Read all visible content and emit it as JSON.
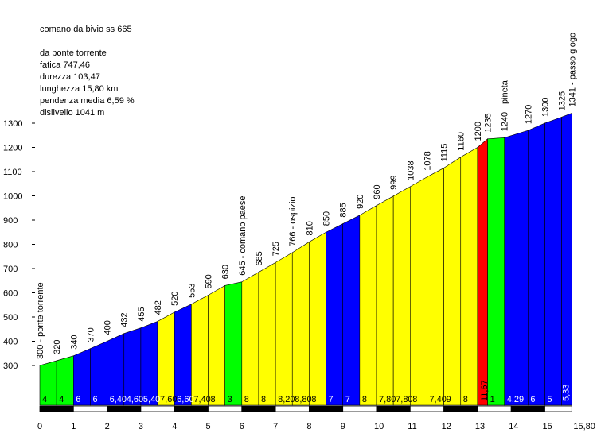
{
  "header": {
    "title": "comano da  bivio ss 665",
    "stats": [
      "da ponte torrente",
      "fatica 747,46",
      "durezza 103,47",
      "lunghezza 15,80 km",
      "pendenza media 6,59 %",
      "dislivello 1041 m"
    ]
  },
  "chart_data": {
    "type": "area",
    "title": "comano da  bivio ss 665",
    "xlabel": "",
    "ylabel": "",
    "x_unit": "km",
    "y_unit": "m",
    "xlim": [
      0,
      15.8
    ],
    "ylim": [
      300,
      1341
    ],
    "x_ticks": [
      "0",
      "1",
      "2",
      "3",
      "4",
      "5",
      "6",
      "7",
      "8",
      "9",
      "10",
      "11",
      "12",
      "13",
      "14",
      "15",
      "15,80"
    ],
    "y_ticks": [
      300,
      400,
      500,
      600,
      700,
      800,
      900,
      1000,
      1100,
      1200,
      1300
    ],
    "grid": false,
    "legend": "none",
    "colors": {
      "green": "#00ff00",
      "blue": "#0000ff",
      "yellow": "#ffff00",
      "red": "#ff0000"
    },
    "x": [
      0,
      0.5,
      1,
      1.5,
      2,
      2.5,
      3,
      3.5,
      4,
      4.5,
      5,
      5.5,
      6,
      6.5,
      7,
      7.5,
      8,
      8.5,
      9,
      9.5,
      10,
      10.5,
      11,
      11.5,
      12,
      12.5,
      13,
      13.3,
      13.8,
      14.5,
      15,
      15.5,
      15.8
    ],
    "elevations": [
      300,
      320,
      340,
      370,
      400,
      432,
      455,
      482,
      520,
      553,
      590,
      630,
      645,
      685,
      725,
      766,
      810,
      850,
      885,
      920,
      960,
      999,
      1038,
      1078,
      1115,
      1160,
      1200,
      1235,
      1240,
      1270,
      1300,
      1325,
      1341
    ],
    "elevation_labels": [
      "300 - ponte torrente",
      "320",
      "340",
      "370",
      "400",
      "432",
      "455",
      "482",
      "520",
      "553",
      "590",
      "630",
      "645 - comano paese",
      "685",
      "725",
      "766 - ospizio",
      "810",
      "850",
      "885",
      "920",
      "960",
      "999",
      "1038",
      "1078",
      "1115",
      "1160",
      "1200",
      "1235",
      "1240 - pineta",
      "1270",
      "1300",
      "1325",
      "1341 - passo giogo"
    ],
    "segments": [
      {
        "color": "green",
        "gradient": "4"
      },
      {
        "color": "green",
        "gradient": "4"
      },
      {
        "color": "blue",
        "gradient": "6"
      },
      {
        "color": "blue",
        "gradient": "6"
      },
      {
        "color": "blue",
        "gradient": "6,40"
      },
      {
        "color": "blue",
        "gradient": "4,60"
      },
      {
        "color": "blue",
        "gradient": "5,40"
      },
      {
        "color": "yellow",
        "gradient": "7,60"
      },
      {
        "color": "blue",
        "gradient": "6,60"
      },
      {
        "color": "yellow",
        "gradient": "7,40"
      },
      {
        "color": "yellow",
        "gradient": "8"
      },
      {
        "color": "green",
        "gradient": "3"
      },
      {
        "color": "yellow",
        "gradient": "8"
      },
      {
        "color": "yellow",
        "gradient": "8"
      },
      {
        "color": "yellow",
        "gradient": "8,20"
      },
      {
        "color": "yellow",
        "gradient": "8,80"
      },
      {
        "color": "yellow",
        "gradient": "8"
      },
      {
        "color": "blue",
        "gradient": "7"
      },
      {
        "color": "blue",
        "gradient": "7"
      },
      {
        "color": "yellow",
        "gradient": "8"
      },
      {
        "color": "yellow",
        "gradient": "7,80"
      },
      {
        "color": "yellow",
        "gradient": "7,80"
      },
      {
        "color": "yellow",
        "gradient": "8"
      },
      {
        "color": "yellow",
        "gradient": "7,40"
      },
      {
        "color": "yellow",
        "gradient": "9"
      },
      {
        "color": "yellow",
        "gradient": "8"
      },
      {
        "color": "red",
        "gradient": "11,67"
      },
      {
        "color": "green",
        "gradient": "1"
      },
      {
        "color": "blue",
        "gradient": "4,29"
      },
      {
        "color": "blue",
        "gradient": "6"
      },
      {
        "color": "blue",
        "gradient": "5"
      },
      {
        "color": "blue",
        "gradient": "5,33"
      }
    ]
  }
}
